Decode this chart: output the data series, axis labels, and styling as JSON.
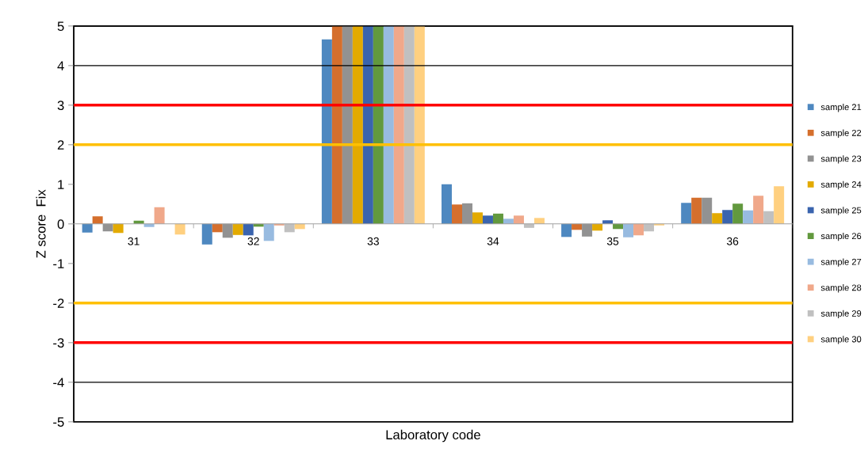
{
  "chart_data": {
    "type": "bar",
    "xlabel": "Laboratory code",
    "ylabel": "Z score  Fix",
    "categories": [
      "31",
      "32",
      "33",
      "34",
      "35",
      "36"
    ],
    "series": [
      {
        "name": "sample 21",
        "color": "#4e88c0",
        "values": [
          -0.22,
          -0.52,
          4.66,
          1.0,
          -0.33,
          0.53
        ]
      },
      {
        "name": "sample 22",
        "color": "#d56f2d",
        "values": [
          0.19,
          -0.21,
          5,
          0.49,
          -0.15,
          0.66
        ]
      },
      {
        "name": "sample 23",
        "color": "#929292",
        "values": [
          -0.19,
          -0.35,
          5,
          0.52,
          -0.32,
          0.66
        ]
      },
      {
        "name": "sample 24",
        "color": "#e3aa00",
        "values": [
          -0.23,
          -0.28,
          5,
          0.29,
          -0.17,
          0.27
        ]
      },
      {
        "name": "sample 25",
        "color": "#3a64ae",
        "values": [
          null,
          -0.29,
          5,
          0.21,
          0.09,
          0.35
        ]
      },
      {
        "name": "sample 26",
        "color": "#62993e",
        "values": [
          0.08,
          -0.07,
          5,
          0.26,
          -0.13,
          0.51
        ]
      },
      {
        "name": "sample 27",
        "color": "#98bbe0",
        "values": [
          -0.08,
          -0.43,
          5,
          0.13,
          -0.34,
          0.34
        ]
      },
      {
        "name": "sample 28",
        "color": "#f0a88a",
        "values": [
          0.42,
          -0.04,
          5,
          0.21,
          -0.29,
          0.71
        ]
      },
      {
        "name": "sample 29",
        "color": "#c0c0c0",
        "values": [
          null,
          -0.21,
          5,
          -0.1,
          -0.19,
          0.32
        ]
      },
      {
        "name": "sample 30",
        "color": "#ffd080",
        "values": [
          -0.27,
          -0.13,
          5,
          0.15,
          -0.04,
          0.95
        ]
      }
    ],
    "ylim": [
      -5,
      5
    ],
    "yticks": [
      -5,
      -4,
      -3,
      -2,
      -1,
      0,
      1,
      2,
      3,
      4,
      5
    ],
    "ref_lines": [
      {
        "axis": "y",
        "value": 4,
        "color": "#000000"
      },
      {
        "axis": "y",
        "value": 3,
        "color": "#ff0000"
      },
      {
        "axis": "y",
        "value": 2,
        "color": "#ffc000"
      },
      {
        "axis": "y",
        "value": -2,
        "color": "#ffc000"
      },
      {
        "axis": "y",
        "value": -3,
        "color": "#ff0000"
      },
      {
        "axis": "y",
        "value": -4,
        "color": "#000000"
      }
    ],
    "grid": false,
    "legend": "right"
  }
}
